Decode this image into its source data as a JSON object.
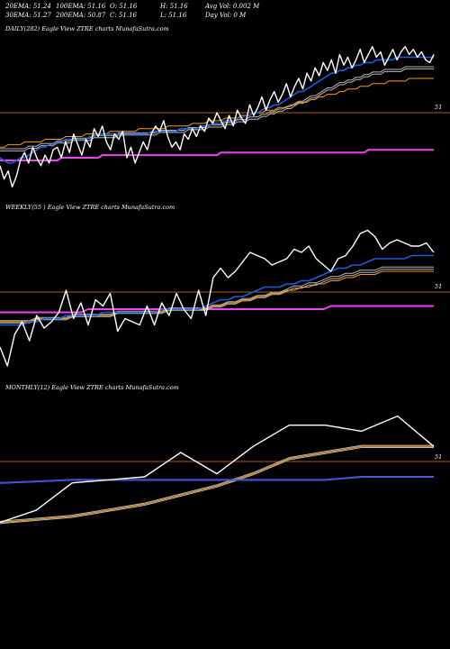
{
  "header": {
    "row1": [
      {
        "name": "20ema",
        "text": "20EMA: 51.24"
      },
      {
        "name": "100ema",
        "text": "100EMA: 51.16"
      },
      {
        "name": "open",
        "text": "O: 51.16"
      },
      {
        "name": "high",
        "text": "H: 51.16"
      },
      {
        "name": "avg-vol",
        "text": "Avg Vol: 0.002  M"
      }
    ],
    "row2": [
      {
        "name": "30ema",
        "text": "30EMA: 51.27"
      },
      {
        "name": "200ema",
        "text": "200EMA: 50.87"
      },
      {
        "name": "close",
        "text": "C: 51.16"
      },
      {
        "name": "low",
        "text": "L: 51.16"
      },
      {
        "name": "day-vol",
        "text": "Day Vol: 0  M"
      }
    ]
  },
  "colors": {
    "background": "#000000",
    "price": "#ffffff",
    "ema_short": "#1e5bd8",
    "ema_long": "#b9b9b9",
    "ema_slow": "#ff9900",
    "ema_baseline": "#ee44ee",
    "level_line": "#b05a16",
    "text": "#ffffff"
  },
  "chart_data": [
    {
      "type": "line",
      "title": "DAILY(282) Eagle   View  ZTRE charts MunafaSutra.com",
      "level_label": "51",
      "series": [
        {
          "role": "price",
          "values": [
            43,
            38,
            41,
            35,
            39,
            45,
            48,
            44,
            50,
            46,
            43,
            47,
            44,
            49,
            50,
            46,
            52,
            48,
            55,
            51,
            47,
            53,
            50,
            57,
            54,
            58,
            52,
            49,
            55,
            53,
            56,
            46,
            50,
            44,
            48,
            52,
            49,
            55,
            58,
            56,
            60,
            54,
            50,
            52,
            49,
            55,
            53,
            57,
            54,
            58,
            56,
            61,
            59,
            63,
            60,
            57,
            62,
            58,
            64,
            61,
            59,
            66,
            62,
            65,
            69,
            64,
            68,
            71,
            67,
            70,
            74,
            69,
            73,
            76,
            72,
            78,
            75,
            80,
            77,
            82,
            79,
            83,
            78,
            85,
            81,
            84,
            80,
            83,
            87,
            82,
            85,
            88,
            84,
            86,
            81,
            84,
            87,
            83,
            86,
            88,
            85,
            87,
            84,
            86,
            83,
            82,
            85
          ]
        },
        {
          "role": "ema-short",
          "values": [
            46,
            45,
            44,
            44,
            45,
            46,
            46,
            47,
            48,
            49,
            50,
            50,
            51,
            51,
            52,
            52,
            53,
            53,
            53,
            53,
            53,
            53,
            54,
            54,
            55,
            55,
            55,
            55,
            55,
            55,
            55,
            55,
            55,
            55,
            55,
            55,
            55,
            56,
            56,
            56,
            56,
            56,
            56,
            56,
            57,
            57,
            57,
            57,
            57,
            58,
            58,
            58,
            59,
            59,
            59,
            60,
            60,
            60,
            61,
            61,
            62,
            62,
            63,
            63,
            64,
            65,
            65,
            66,
            66,
            67,
            68,
            69,
            70,
            71,
            71,
            72,
            73,
            74,
            75,
            76,
            77,
            78,
            78,
            79,
            79,
            80,
            80,
            81,
            81,
            82,
            82,
            82,
            83,
            83,
            83,
            83,
            83,
            84,
            84,
            84,
            84,
            84,
            84,
            84,
            84,
            84,
            84
          ]
        },
        {
          "role": "ema-long",
          "values": [
            49,
            49,
            49,
            49,
            49,
            49,
            49,
            50,
            50,
            50,
            51,
            51,
            51,
            51,
            52,
            52,
            52,
            52,
            53,
            53,
            53,
            53,
            53,
            54,
            54,
            54,
            54,
            54,
            54,
            55,
            55,
            55,
            55,
            55,
            55,
            55,
            55,
            55,
            55,
            56,
            56,
            56,
            56,
            56,
            56,
            56,
            57,
            57,
            57,
            57,
            57,
            58,
            58,
            58,
            58,
            59,
            59,
            59,
            60,
            60,
            60,
            61,
            61,
            61,
            62,
            62,
            63,
            63,
            64,
            64,
            65,
            65,
            66,
            67,
            67,
            68,
            69,
            69,
            70,
            71,
            72,
            72,
            73,
            74,
            74,
            75,
            75,
            76,
            76,
            77,
            77,
            78,
            78,
            78,
            79,
            79,
            79,
            79,
            79,
            80,
            80,
            80,
            80,
            80,
            80,
            80,
            80
          ]
        },
        {
          "role": "ema-slow",
          "values": [
            50,
            50,
            51,
            51,
            51,
            51,
            52,
            52,
            52,
            52,
            52,
            53,
            53,
            53,
            53,
            53,
            54,
            54,
            54,
            54,
            54,
            55,
            55,
            55,
            55,
            55,
            55,
            56,
            56,
            56,
            56,
            56,
            56,
            56,
            57,
            57,
            57,
            57,
            57,
            57,
            57,
            58,
            58,
            58,
            58,
            58,
            58,
            59,
            59,
            59,
            59,
            60,
            60,
            60,
            60,
            61,
            61,
            61,
            61,
            62,
            62,
            62,
            63,
            63,
            63,
            64,
            64,
            64,
            65,
            65,
            65,
            66,
            66,
            67,
            67,
            67,
            68,
            68,
            69,
            69,
            70,
            70,
            70,
            71,
            71,
            72,
            72,
            72,
            73,
            73,
            73,
            74,
            74,
            74,
            74,
            75,
            75,
            75,
            75,
            75,
            76,
            76,
            76,
            76,
            76,
            76,
            76
          ]
        },
        {
          "role": "ema-baseline",
          "values": [
            45,
            45,
            45,
            45,
            45,
            45,
            45,
            45,
            45,
            45,
            45,
            45,
            45,
            45,
            45,
            46,
            46,
            46,
            46,
            46,
            46,
            46,
            46,
            46,
            46,
            47,
            47,
            47,
            47,
            47,
            47,
            47,
            47,
            47,
            47,
            47,
            47,
            47,
            47,
            47,
            47,
            47,
            47,
            47,
            47,
            47,
            47,
            47,
            47,
            47,
            47,
            47,
            47,
            47,
            48,
            48,
            48,
            48,
            48,
            48,
            48,
            48,
            48,
            48,
            48,
            48,
            48,
            48,
            48,
            48,
            48,
            48,
            48,
            48,
            48,
            48,
            48,
            48,
            48,
            48,
            48,
            48,
            48,
            48,
            48,
            48,
            48,
            48,
            48,
            48,
            49,
            49,
            49,
            49,
            49,
            49,
            49,
            49,
            49,
            49,
            49,
            49,
            49,
            49,
            49,
            49,
            49
          ]
        }
      ]
    },
    {
      "type": "line",
      "title": "WEEKLY(55                     ) Eagle   View  ZTRE charts MunafaSutra.com",
      "level_label": "51",
      "series": [
        {
          "role": "price",
          "values": [
            38,
            32,
            42,
            46,
            40,
            48,
            44,
            46,
            49,
            56,
            47,
            52,
            45,
            53,
            51,
            55,
            43,
            47,
            46,
            45,
            51,
            45,
            52,
            48,
            55,
            50,
            47,
            56,
            48,
            60,
            63,
            60,
            62,
            65,
            68,
            67,
            66,
            64,
            65,
            66,
            69,
            68,
            70,
            66,
            64,
            62,
            66,
            67,
            70,
            74,
            75,
            73,
            69,
            71,
            72,
            71,
            70,
            70,
            71,
            68
          ]
        },
        {
          "role": "ema-short",
          "values": [
            45,
            45,
            45,
            45,
            46,
            46,
            47,
            47,
            47,
            48,
            48,
            48,
            48,
            48,
            49,
            49,
            49,
            49,
            49,
            49,
            49,
            49,
            50,
            50,
            50,
            50,
            50,
            50,
            51,
            52,
            53,
            53,
            54,
            54,
            55,
            56,
            57,
            57,
            57,
            58,
            58,
            59,
            59,
            60,
            61,
            62,
            63,
            63,
            64,
            64,
            65,
            66,
            66,
            66,
            66,
            66,
            67,
            67,
            67,
            67
          ]
        },
        {
          "role": "ema-long",
          "values": [
            46,
            46,
            46,
            46,
            46,
            47,
            47,
            47,
            47,
            47,
            48,
            48,
            48,
            48,
            48,
            48,
            49,
            49,
            49,
            49,
            49,
            49,
            49,
            50,
            50,
            50,
            50,
            50,
            50,
            51,
            51,
            52,
            52,
            53,
            53,
            54,
            54,
            55,
            55,
            56,
            57,
            57,
            58,
            58,
            59,
            60,
            60,
            61,
            61,
            62,
            62,
            62,
            63,
            63,
            63,
            63,
            63,
            63,
            63,
            63
          ]
        },
        {
          "role": "ema-slow",
          "values": [
            46,
            46,
            46,
            46,
            46,
            47,
            47,
            47,
            47,
            47,
            48,
            48,
            48,
            48,
            48,
            48,
            49,
            49,
            49,
            49,
            49,
            49,
            49,
            50,
            50,
            50,
            50,
            50,
            50,
            51,
            51,
            52,
            52,
            53,
            53,
            54,
            54,
            55,
            55,
            56,
            56,
            57,
            57,
            58,
            58,
            59,
            59,
            60,
            60,
            61,
            61,
            61,
            62,
            62,
            62,
            62,
            62,
            62,
            62,
            62
          ]
        },
        {
          "role": "ema-baseline",
          "values": [
            49,
            49,
            49,
            49,
            49,
            49,
            49,
            49,
            49,
            49,
            49,
            49,
            50,
            50,
            50,
            50,
            50,
            50,
            50,
            50,
            50,
            50,
            50,
            50,
            50,
            50,
            50,
            50,
            50,
            50,
            50,
            50,
            50,
            50,
            50,
            50,
            50,
            50,
            50,
            50,
            50,
            50,
            50,
            50,
            50,
            51,
            51,
            51,
            51,
            51,
            51,
            51,
            51,
            51,
            51,
            51,
            51,
            51,
            51,
            51
          ]
        }
      ]
    },
    {
      "type": "line",
      "title": "MONTHLY(12) Eagle   View  ZTRE charts MunafaSutra.com",
      "level_label": "51",
      "series": [
        {
          "role": "price",
          "values": [
            30,
            34,
            43,
            44,
            45,
            53,
            46,
            55,
            62,
            62,
            60,
            65,
            55
          ]
        },
        {
          "role": "ema-short",
          "values": [
            43,
            43.5,
            44,
            44,
            44,
            44,
            44,
            44,
            44,
            44,
            45,
            45,
            45
          ]
        },
        {
          "role": "ema-long",
          "values": [
            30,
            31,
            32,
            34,
            36,
            39,
            42,
            46,
            51,
            53,
            55,
            55,
            55
          ]
        },
        {
          "role": "ema-slow",
          "values": [
            30,
            31,
            32,
            34,
            36,
            39,
            42,
            46,
            51,
            53,
            55,
            55,
            55
          ]
        },
        {
          "role": "ema-baseline",
          "values": [
            43,
            43.5,
            44,
            44,
            44,
            44,
            44,
            44,
            44,
            44,
            45,
            45,
            45
          ]
        }
      ]
    }
  ]
}
